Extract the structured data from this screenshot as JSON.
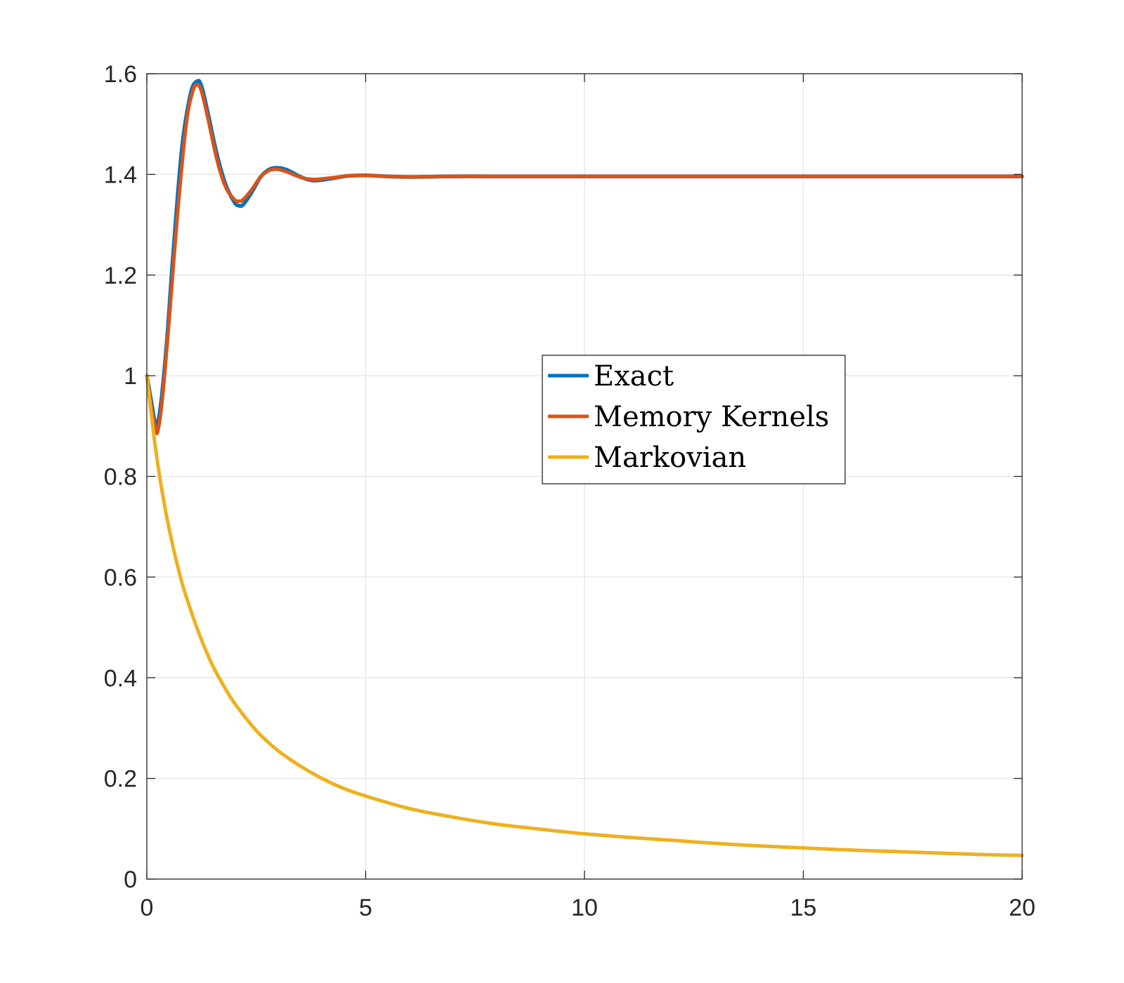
{
  "chart_data": {
    "type": "line",
    "title": "",
    "xlabel": "",
    "ylabel": "",
    "xlim": [
      0,
      20
    ],
    "ylim": [
      0,
      1.6
    ],
    "xticks": [
      0,
      5,
      10,
      15,
      20
    ],
    "yticks": [
      0,
      0.2,
      0.4,
      0.6,
      0.8,
      1,
      1.2,
      1.4,
      1.6
    ],
    "xtick_labels": [
      "0",
      "5",
      "10",
      "15",
      "20"
    ],
    "ytick_labels": [
      "0",
      "0.2",
      "0.4",
      "0.6",
      "0.8",
      "1",
      "1.2",
      "1.4",
      "1.6"
    ],
    "grid": true,
    "legend_position": "center-right",
    "series": [
      {
        "name": "Exact",
        "color": "#0072BD",
        "x": [
          0,
          0.1,
          0.2,
          0.3,
          0.45,
          0.6,
          0.8,
          1.0,
          1.15,
          1.25,
          1.4,
          1.6,
          1.8,
          2.0,
          2.1,
          2.2,
          2.4,
          2.6,
          2.8,
          3.0,
          3.2,
          3.4,
          3.6,
          3.8,
          4.0,
          4.3,
          4.6,
          5.0,
          5.5,
          6.0,
          7.0,
          8.0,
          10.0,
          12.0,
          15.0,
          18.0,
          20.0
        ],
        "y": [
          1.0,
          0.95,
          0.905,
          0.93,
          1.06,
          1.24,
          1.45,
          1.56,
          1.585,
          1.575,
          1.52,
          1.44,
          1.38,
          1.345,
          1.338,
          1.34,
          1.365,
          1.395,
          1.41,
          1.413,
          1.409,
          1.4,
          1.392,
          1.388,
          1.389,
          1.393,
          1.397,
          1.398,
          1.396,
          1.395,
          1.396,
          1.396,
          1.396,
          1.396,
          1.396,
          1.396,
          1.396
        ]
      },
      {
        "name": "Memory Kernels",
        "color": "#D95319",
        "x": [
          0,
          0.1,
          0.2,
          0.25,
          0.35,
          0.5,
          0.7,
          0.9,
          1.05,
          1.15,
          1.25,
          1.4,
          1.6,
          1.8,
          2.0,
          2.1,
          2.2,
          2.4,
          2.6,
          2.8,
          3.0,
          3.2,
          3.4,
          3.6,
          3.8,
          4.0,
          4.3,
          4.6,
          5.0,
          5.5,
          6.0,
          7.0,
          8.0,
          10.0,
          12.0,
          15.0,
          18.0,
          20.0
        ],
        "y": [
          1.0,
          0.94,
          0.895,
          0.89,
          0.95,
          1.1,
          1.32,
          1.5,
          1.565,
          1.578,
          1.565,
          1.51,
          1.43,
          1.375,
          1.35,
          1.347,
          1.35,
          1.37,
          1.395,
          1.408,
          1.41,
          1.405,
          1.398,
          1.392,
          1.39,
          1.391,
          1.394,
          1.397,
          1.398,
          1.396,
          1.395,
          1.396,
          1.396,
          1.396,
          1.396,
          1.396,
          1.396,
          1.396
        ]
      },
      {
        "name": "Markovian",
        "color": "#EDB120",
        "x": [
          0,
          0.2,
          0.4,
          0.6,
          0.8,
          1.0,
          1.25,
          1.5,
          1.75,
          2.0,
          2.5,
          3.0,
          3.5,
          4.0,
          4.5,
          5.0,
          6.0,
          7.0,
          8.0,
          9.0,
          10.0,
          11.0,
          12.0,
          13.0,
          14.0,
          15.0,
          16.0,
          17.0,
          18.0,
          19.0,
          20.0
        ],
        "y": [
          1.0,
          0.855,
          0.745,
          0.66,
          0.59,
          0.535,
          0.475,
          0.425,
          0.385,
          0.35,
          0.295,
          0.255,
          0.225,
          0.2,
          0.18,
          0.165,
          0.14,
          0.123,
          0.109,
          0.099,
          0.09,
          0.083,
          0.077,
          0.071,
          0.066,
          0.062,
          0.058,
          0.055,
          0.052,
          0.049,
          0.047
        ]
      }
    ]
  }
}
